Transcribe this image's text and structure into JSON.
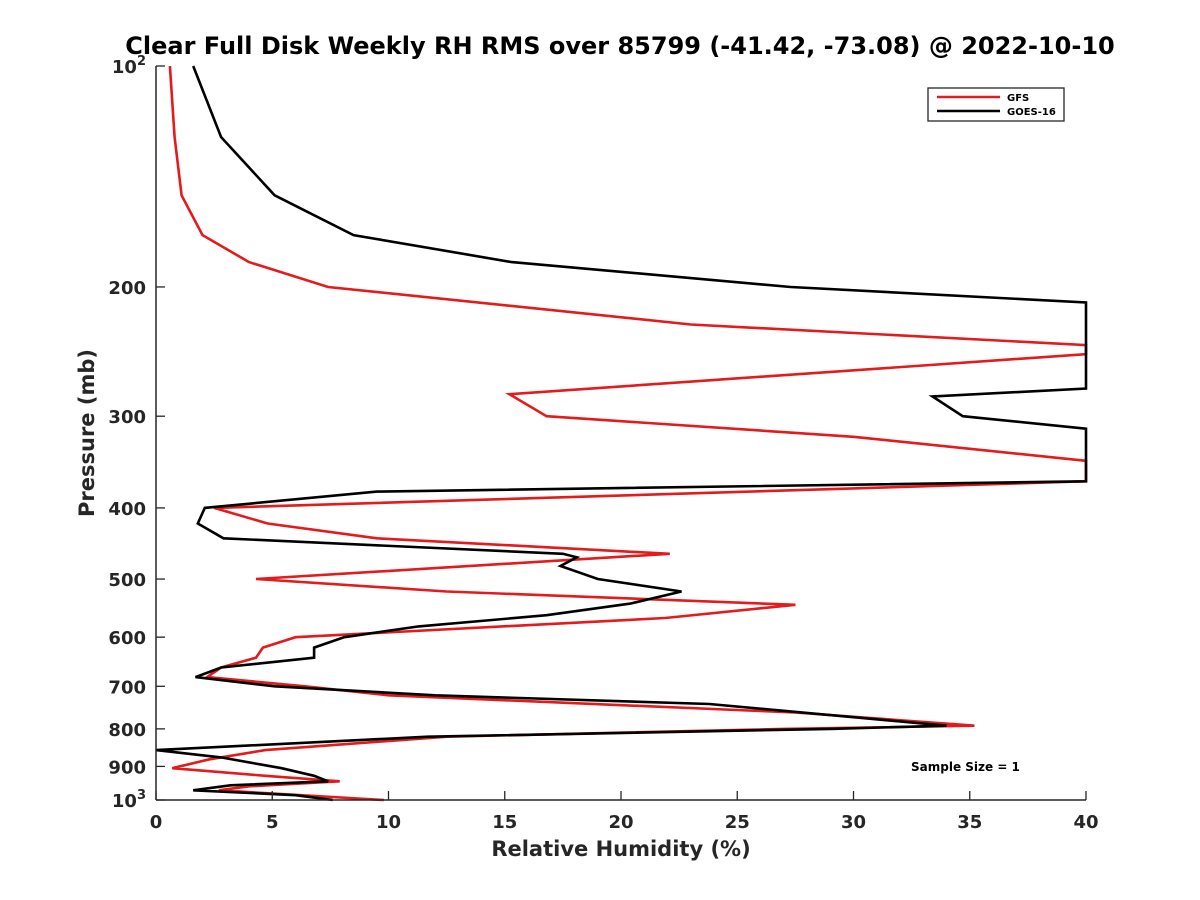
{
  "chart_data": {
    "type": "line",
    "title": "Clear Full Disk Weekly RH RMS over 85799 (-41.42, -73.08) @ 2022-10-10",
    "xlabel": "Relative Humidity (%)",
    "ylabel": "Pressure (mb)",
    "xlim": [
      0,
      40
    ],
    "ylim": [
      100,
      1000
    ],
    "y_scale": "log",
    "y_reversed": true,
    "x_ticks": [
      "0",
      "5",
      "10",
      "15",
      "20",
      "25",
      "30",
      "35",
      "40"
    ],
    "y_ticks": [
      {
        "value": 100,
        "base": "10",
        "exp": "2",
        "label": ""
      },
      {
        "value": 200,
        "base": "",
        "exp": "",
        "label": "200"
      },
      {
        "value": 300,
        "base": "",
        "exp": "",
        "label": "300"
      },
      {
        "value": 400,
        "base": "",
        "exp": "",
        "label": "400"
      },
      {
        "value": 500,
        "base": "",
        "exp": "",
        "label": "500"
      },
      {
        "value": 600,
        "base": "",
        "exp": "",
        "label": "600"
      },
      {
        "value": 700,
        "base": "",
        "exp": "",
        "label": "700"
      },
      {
        "value": 800,
        "base": "",
        "exp": "",
        "label": "800"
      },
      {
        "value": 900,
        "base": "",
        "exp": "",
        "label": "900"
      },
      {
        "value": 1000,
        "base": "10",
        "exp": "3",
        "label": ""
      }
    ],
    "grid": false,
    "legend_position": "top-right",
    "annotation": "Sample Size = 1",
    "series": [
      {
        "name": "GFS",
        "color": "#e41a1c",
        "points": [
          [
            0.6,
            100
          ],
          [
            0.8,
            125
          ],
          [
            1.1,
            150
          ],
          [
            2.0,
            170
          ],
          [
            4.0,
            185
          ],
          [
            7.4,
            200
          ],
          [
            23,
            225
          ],
          [
            40,
            240
          ],
          [
            40,
            247
          ],
          [
            15.2,
            280
          ],
          [
            16.8,
            300
          ],
          [
            30,
            320
          ],
          [
            40,
            345
          ],
          [
            40,
            368
          ],
          [
            2.5,
            400
          ],
          [
            4.8,
            420
          ],
          [
            9.5,
            440
          ],
          [
            22.1,
            462
          ],
          [
            4.3,
            500
          ],
          [
            12.5,
            520
          ],
          [
            27.5,
            542
          ],
          [
            21.9,
            565
          ],
          [
            6.0,
            600
          ],
          [
            4.6,
            620
          ],
          [
            4.3,
            640
          ],
          [
            2.8,
            660
          ],
          [
            2.2,
            680
          ],
          [
            6.4,
            700
          ],
          [
            10,
            720
          ],
          [
            27.5,
            760
          ],
          [
            35.2,
            792
          ],
          [
            27,
            800
          ],
          [
            12.5,
            820
          ],
          [
            4.7,
            855
          ],
          [
            2.3,
            880
          ],
          [
            0.7,
            905
          ],
          [
            4.7,
            927
          ],
          [
            7.9,
            943
          ],
          [
            4.0,
            958
          ],
          [
            2.7,
            970
          ],
          [
            9.8,
            1000
          ]
        ]
      },
      {
        "name": "GOES-16",
        "color": "#000000",
        "points": [
          [
            1.6,
            100
          ],
          [
            2.8,
            125
          ],
          [
            5.1,
            150
          ],
          [
            8.5,
            170
          ],
          [
            15.3,
            185
          ],
          [
            27.3,
            200
          ],
          [
            40,
            210
          ],
          [
            40,
            275
          ],
          [
            33.4,
            282
          ],
          [
            34.7,
            300
          ],
          [
            40,
            312
          ],
          [
            40,
            368
          ],
          [
            9.5,
            380
          ],
          [
            2.1,
            400
          ],
          [
            1.8,
            420
          ],
          [
            2.9,
            440
          ],
          [
            17.5,
            462
          ],
          [
            18.1,
            467
          ],
          [
            17.4,
            480
          ],
          [
            19.0,
            500
          ],
          [
            22.6,
            520
          ],
          [
            20.4,
            540
          ],
          [
            16.8,
            560
          ],
          [
            11.3,
            580
          ],
          [
            8.1,
            600
          ],
          [
            6.8,
            620
          ],
          [
            6.8,
            640
          ],
          [
            2.8,
            660
          ],
          [
            1.7,
            680
          ],
          [
            5.1,
            700
          ],
          [
            12,
            720
          ],
          [
            23.8,
            740
          ],
          [
            34,
            792
          ],
          [
            29,
            800
          ],
          [
            11.7,
            820
          ],
          [
            0,
            855
          ],
          [
            2.8,
            875
          ],
          [
            5.4,
            905
          ],
          [
            6.8,
            927
          ],
          [
            7.4,
            943
          ],
          [
            3.2,
            955
          ],
          [
            1.6,
            970
          ],
          [
            6.0,
            985
          ],
          [
            7.6,
            1000
          ]
        ]
      }
    ]
  }
}
